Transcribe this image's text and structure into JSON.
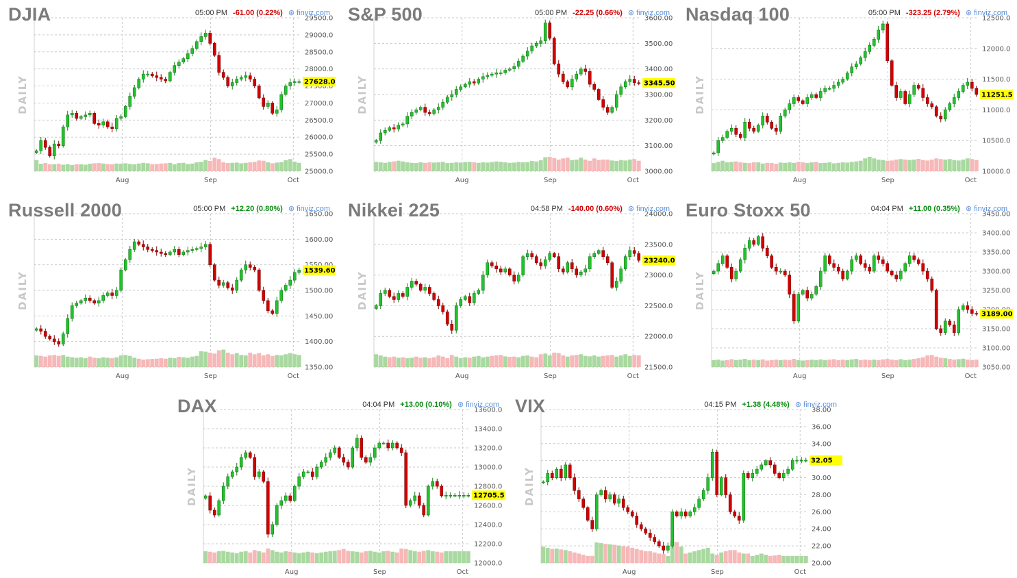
{
  "brand": "finviz.com",
  "colors": {
    "up": "#22c22e",
    "down": "#d20000",
    "up_vol": "#a9d9a0",
    "down_vol": "#f6b8b8",
    "grid": "#c9c9c9",
    "last": "#ffff00"
  },
  "chart_data": [
    {
      "type": "candlestick",
      "title": "DJIA",
      "time": "05:00 PM",
      "change": "-61.00 (0.22%)",
      "direction": "down",
      "side_label": "DAILY",
      "x_ticks": [
        "Aug",
        "Sep",
        "Oct"
      ],
      "y_ticks": [
        "29500.0",
        "29000.0",
        "28500.0",
        "28000.0",
        "27500.0",
        "27000.0",
        "26500.0",
        "26000.0",
        "25500.0",
        "25000.0"
      ],
      "ylim": [
        25000,
        29500
      ],
      "last_label": "27628.0",
      "last": 27628,
      "close": [
        25600,
        25900,
        25700,
        25450,
        25800,
        25750,
        26300,
        26650,
        26700,
        26550,
        26600,
        26650,
        26700,
        26400,
        26350,
        26450,
        26300,
        26250,
        26550,
        26600,
        26900,
        27200,
        27450,
        27700,
        27850,
        27850,
        27800,
        27750,
        27700,
        27650,
        27900,
        28100,
        28200,
        28300,
        28450,
        28600,
        28800,
        28950,
        29050,
        28750,
        28400,
        27900,
        27750,
        27500,
        27600,
        27700,
        27750,
        27800,
        27700,
        27500,
        27150,
        26900,
        27000,
        26700,
        26800,
        27250,
        27500,
        27600,
        27628,
        27628
      ],
      "volume_up": [
        0.48,
        0.32,
        0.35,
        0.3,
        0.3,
        0.32,
        0.28,
        0.3,
        0.27,
        0.3,
        0.3,
        0.28,
        0.32,
        0.34,
        0.35,
        0.33,
        0.31,
        0.3,
        0.33,
        0.32,
        0.34,
        0.31,
        0.3,
        0.33,
        0.36,
        0.34,
        0.3,
        0.31,
        0.33,
        0.34,
        0.36,
        0.3,
        0.35,
        0.36,
        0.31,
        0.33,
        0.38,
        0.4,
        0.48,
        0.44,
        0.58,
        0.52,
        0.38,
        0.35,
        0.36,
        0.37,
        0.34,
        0.36,
        0.38,
        0.4,
        0.46,
        0.45,
        0.38,
        0.34,
        0.37,
        0.39,
        0.47,
        0.52,
        0.41,
        0.36
      ]
    },
    {
      "type": "candlestick",
      "title": "S&P 500",
      "time": "05:00 PM",
      "change": "-22.25 (0.66%)",
      "direction": "down",
      "side_label": "DAILY",
      "x_ticks": [
        "Aug",
        "Sep",
        "Oct"
      ],
      "y_ticks": [
        "3600.00",
        "3500.00",
        "3400.00",
        "3300.00",
        "3200.00",
        "3100.00",
        "3000.00"
      ],
      "ylim": [
        3000,
        3600
      ],
      "last_label": "3345.50",
      "last": 3345.5,
      "close": [
        3120,
        3150,
        3160,
        3170,
        3165,
        3180,
        3185,
        3215,
        3230,
        3240,
        3250,
        3230,
        3225,
        3240,
        3250,
        3270,
        3290,
        3300,
        3320,
        3330,
        3340,
        3350,
        3345,
        3360,
        3370,
        3375,
        3380,
        3385,
        3385,
        3395,
        3400,
        3410,
        3430,
        3450,
        3470,
        3490,
        3500,
        3510,
        3580,
        3520,
        3420,
        3380,
        3350,
        3330,
        3360,
        3380,
        3400,
        3390,
        3340,
        3320,
        3280,
        3250,
        3230,
        3250,
        3300,
        3330,
        3350,
        3360,
        3346,
        3345
      ],
      "volume_up": [
        0.4,
        0.38,
        0.36,
        0.4,
        0.42,
        0.45,
        0.42,
        0.38,
        0.36,
        0.35,
        0.38,
        0.36,
        0.38,
        0.37,
        0.38,
        0.4,
        0.35,
        0.36,
        0.38,
        0.37,
        0.39,
        0.4,
        0.38,
        0.36,
        0.38,
        0.37,
        0.39,
        0.42,
        0.4,
        0.38,
        0.36,
        0.37,
        0.4,
        0.38,
        0.39,
        0.44,
        0.42,
        0.47,
        0.6,
        0.62,
        0.56,
        0.5,
        0.55,
        0.58,
        0.48,
        0.5,
        0.58,
        0.5,
        0.45,
        0.55,
        0.48,
        0.5,
        0.5,
        0.46,
        0.44,
        0.48,
        0.46,
        0.5,
        0.52,
        0.45
      ]
    },
    {
      "type": "candlestick",
      "title": "Nasdaq 100",
      "time": "05:00 PM",
      "change": "-323.25 (2.79%)",
      "direction": "down",
      "side_label": "DAILY",
      "x_ticks": [
        "Aug",
        "Sep",
        "Oct"
      ],
      "y_ticks": [
        "12500.0",
        "12000.0",
        "11500.0",
        "11000.0",
        "10500.0",
        "10000.0"
      ],
      "ylim": [
        10000,
        12500
      ],
      "last_label": "11251.5",
      "last": 11251.5,
      "close": [
        10300,
        10500,
        10550,
        10650,
        10700,
        10600,
        10550,
        10800,
        10700,
        10650,
        10750,
        10900,
        10800,
        10700,
        10650,
        10900,
        11000,
        11100,
        11200,
        11150,
        11100,
        11200,
        11250,
        11200,
        11300,
        11350,
        11350,
        11400,
        11450,
        11500,
        11600,
        11700,
        11750,
        11850,
        11950,
        12050,
        12150,
        12300,
        12400,
        11800,
        11400,
        11200,
        11300,
        11100,
        11250,
        11400,
        11350,
        11200,
        11100,
        11050,
        10900,
        10850,
        11000,
        11100,
        11200,
        11300,
        11400,
        11450,
        11350,
        11251
      ],
      "volume_up": [
        0.35,
        0.4,
        0.45,
        0.38,
        0.4,
        0.42,
        0.38,
        0.36,
        0.35,
        0.38,
        0.38,
        0.33,
        0.36,
        0.35,
        0.32,
        0.37,
        0.36,
        0.38,
        0.36,
        0.4,
        0.38,
        0.35,
        0.38,
        0.4,
        0.35,
        0.36,
        0.38,
        0.34,
        0.36,
        0.38,
        0.37,
        0.4,
        0.42,
        0.45,
        0.55,
        0.62,
        0.55,
        0.5,
        0.48,
        0.45,
        0.46,
        0.5,
        0.52,
        0.5,
        0.48,
        0.5,
        0.53,
        0.48,
        0.46,
        0.5,
        0.55,
        0.52,
        0.5,
        0.52,
        0.48,
        0.46,
        0.5,
        0.55,
        0.52,
        0.48
      ]
    },
    {
      "type": "candlestick",
      "title": "Russell 2000",
      "time": "05:00 PM",
      "change": "+12.20 (0.80%)",
      "direction": "up",
      "side_label": "DAILY",
      "x_ticks": [
        "Aug",
        "Sep",
        "Oct"
      ],
      "y_ticks": [
        "1650.00",
        "1600.00",
        "1550.00",
        "1500.00",
        "1450.00",
        "1400.00",
        "1350.00"
      ],
      "ylim": [
        1350,
        1650
      ],
      "last_label": "1539.60",
      "last": 1539.6,
      "close": [
        1425,
        1420,
        1410,
        1405,
        1400,
        1395,
        1415,
        1445,
        1470,
        1475,
        1480,
        1485,
        1480,
        1475,
        1480,
        1490,
        1495,
        1490,
        1500,
        1540,
        1560,
        1580,
        1595,
        1590,
        1585,
        1580,
        1578,
        1575,
        1572,
        1570,
        1575,
        1580,
        1570,
        1575,
        1578,
        1580,
        1582,
        1585,
        1590,
        1550,
        1520,
        1510,
        1515,
        1505,
        1500,
        1520,
        1540,
        1550,
        1545,
        1540,
        1500,
        1480,
        1460,
        1455,
        1480,
        1500,
        1510,
        1520,
        1535,
        1539.6
      ],
      "volume_up": [
        0.5,
        0.48,
        0.45,
        0.5,
        0.52,
        0.48,
        0.52,
        0.45,
        0.42,
        0.4,
        0.42,
        0.38,
        0.45,
        0.4,
        0.38,
        0.42,
        0.4,
        0.38,
        0.42,
        0.5,
        0.52,
        0.48,
        0.4,
        0.36,
        0.32,
        0.34,
        0.35,
        0.36,
        0.38,
        0.36,
        0.4,
        0.38,
        0.44,
        0.42,
        0.4,
        0.45,
        0.48,
        0.68,
        0.66,
        0.62,
        0.58,
        0.72,
        0.75,
        0.62,
        0.55,
        0.6,
        0.52,
        0.5,
        0.62,
        0.55,
        0.6,
        0.5,
        0.55,
        0.48,
        0.52,
        0.5,
        0.55,
        0.6,
        0.55,
        0.52
      ]
    },
    {
      "type": "candlestick",
      "title": "Nikkei 225",
      "time": "04:58 PM",
      "change": "-140.00 (0.60%)",
      "direction": "down",
      "side_label": "DAILY",
      "x_ticks": [
        "Aug",
        "Sep",
        "Oct"
      ],
      "y_ticks": [
        "24000.0",
        "23500.0",
        "23000.0",
        "22500.0",
        "22000.0",
        "21500.0"
      ],
      "ylim": [
        21500,
        24000
      ],
      "last_label": "23240.0",
      "last": 23240,
      "close": [
        22500,
        22700,
        22750,
        22650,
        22600,
        22700,
        22650,
        22800,
        22900,
        22850,
        22750,
        22800,
        22700,
        22600,
        22500,
        22400,
        22200,
        22100,
        22500,
        22600,
        22650,
        22550,
        22700,
        22750,
        23000,
        23200,
        23150,
        23100,
        23050,
        23100,
        23000,
        22900,
        23000,
        23300,
        23350,
        23300,
        23200,
        23150,
        23250,
        23350,
        23300,
        23100,
        23050,
        23200,
        23100,
        23000,
        23050,
        23100,
        23300,
        23350,
        23400,
        23300,
        23200,
        22800,
        22900,
        23100,
        23300,
        23400,
        23350,
        23240
      ],
      "volume_up": [
        0.55,
        0.5,
        0.45,
        0.42,
        0.45,
        0.4,
        0.42,
        0.38,
        0.4,
        0.45,
        0.4,
        0.42,
        0.38,
        0.42,
        0.5,
        0.45,
        0.38,
        0.52,
        0.45,
        0.38,
        0.42,
        0.4,
        0.45,
        0.48,
        0.42,
        0.45,
        0.48,
        0.5,
        0.52,
        0.46,
        0.44,
        0.45,
        0.42,
        0.48,
        0.5,
        0.45,
        0.42,
        0.55,
        0.58,
        0.5,
        0.62,
        0.6,
        0.5,
        0.45,
        0.5,
        0.52,
        0.55,
        0.48,
        0.46,
        0.5,
        0.45,
        0.48,
        0.5,
        0.52,
        0.45,
        0.5,
        0.55,
        0.48,
        0.52,
        0.5
      ]
    },
    {
      "type": "candlestick",
      "title": "Euro Stoxx 50",
      "time": "04:04 PM",
      "change": "+11.00 (0.35%)",
      "direction": "up",
      "side_label": "DAILY",
      "x_ticks": [
        "Aug",
        "Sep",
        "Oct"
      ],
      "y_ticks": [
        "3450.00",
        "3400.00",
        "3350.00",
        "3300.00",
        "3250.00",
        "3200.00",
        "3150.00",
        "3100.00",
        "3050.00"
      ],
      "ylim": [
        3050,
        3450
      ],
      "last_label": "3189.00",
      "last": 3189,
      "close": [
        3300,
        3320,
        3340,
        3310,
        3280,
        3300,
        3330,
        3360,
        3380,
        3370,
        3390,
        3360,
        3340,
        3310,
        3300,
        3300,
        3290,
        3240,
        3170,
        3240,
        3250,
        3230,
        3240,
        3260,
        3300,
        3340,
        3320,
        3310,
        3300,
        3280,
        3300,
        3330,
        3340,
        3320,
        3310,
        3300,
        3340,
        3330,
        3320,
        3300,
        3290,
        3280,
        3300,
        3320,
        3340,
        3330,
        3320,
        3300,
        3280,
        3250,
        3150,
        3140,
        3170,
        3160,
        3140,
        3200,
        3210,
        3200,
        3190,
        3189
      ],
      "volume_up": [
        0.3,
        0.32,
        0.28,
        0.3,
        0.34,
        0.3,
        0.32,
        0.35,
        0.3,
        0.32,
        0.3,
        0.33,
        0.28,
        0.3,
        0.32,
        0.3,
        0.32,
        0.3,
        0.35,
        0.3,
        0.28,
        0.3,
        0.32,
        0.3,
        0.33,
        0.3,
        0.32,
        0.34,
        0.3,
        0.32,
        0.3,
        0.33,
        0.35,
        0.3,
        0.32,
        0.3,
        0.32,
        0.3,
        0.33,
        0.35,
        0.32,
        0.3,
        0.34,
        0.3,
        0.32,
        0.35,
        0.38,
        0.42,
        0.5,
        0.52,
        0.45,
        0.4,
        0.38,
        0.35,
        0.32,
        0.34,
        0.36,
        0.32,
        0.3,
        0.32
      ]
    },
    {
      "type": "candlestick",
      "title": "DAX",
      "time": "04:04 PM",
      "change": "+13.00 (0.10%)",
      "direction": "up",
      "side_label": "DAILY",
      "x_ticks": [
        "Aug",
        "Sep",
        "Oct"
      ],
      "y_ticks": [
        "13600.0",
        "13400.0",
        "13200.0",
        "13000.0",
        "12800.0",
        "12600.0",
        "12400.0",
        "12200.0",
        "12000.0"
      ],
      "ylim": [
        12000,
        13600
      ],
      "last_label": "12705.5",
      "last": 12705.5,
      "close": [
        12700,
        12550,
        12500,
        12650,
        12800,
        12900,
        12950,
        13000,
        13100,
        13150,
        13100,
        12900,
        12950,
        12850,
        12300,
        12400,
        12600,
        12650,
        12700,
        12650,
        12800,
        12900,
        12950,
        12950,
        12900,
        13000,
        13050,
        13100,
        13150,
        13200,
        13100,
        13050,
        13000,
        13200,
        13300,
        13100,
        13050,
        13100,
        13200,
        13250,
        13250,
        13200,
        13250,
        13200,
        13150,
        12600,
        12650,
        12700,
        12600,
        12500,
        12800,
        12850,
        12800,
        12700,
        12705,
        12705,
        12705,
        12705,
        12705,
        12705
      ],
      "volume_up": [
        0.5,
        0.48,
        0.45,
        0.5,
        0.52,
        0.48,
        0.45,
        0.42,
        0.48,
        0.5,
        0.45,
        0.55,
        0.5,
        0.45,
        0.62,
        0.55,
        0.48,
        0.45,
        0.5,
        0.48,
        0.45,
        0.42,
        0.45,
        0.48,
        0.45,
        0.42,
        0.45,
        0.48,
        0.5,
        0.52,
        0.55,
        0.6,
        0.52,
        0.5,
        0.48,
        0.45,
        0.5,
        0.52,
        0.48,
        0.45,
        0.5,
        0.52,
        0.48,
        0.45,
        0.62,
        0.6,
        0.55,
        0.5,
        0.48,
        0.52,
        0.55,
        0.5,
        0.48,
        0.45,
        0.5,
        0.5,
        0.5,
        0.5,
        0.5,
        0.5
      ]
    },
    {
      "type": "candlestick",
      "title": "VIX",
      "time": "04:15 PM",
      "change": "+1.38 (4.48%)",
      "direction": "up",
      "side_label": "DAILY",
      "x_ticks": [
        "Aug",
        "Sep",
        "Oct"
      ],
      "y_ticks": [
        "38.00",
        "36.00",
        "34.00",
        "32.00",
        "30.00",
        "28.00",
        "26.00",
        "24.00",
        "22.00",
        "20.00"
      ],
      "ylim": [
        20,
        38
      ],
      "last_label": "32.05",
      "last": 32.05,
      "close": [
        29.5,
        30.5,
        30.0,
        31.0,
        30.0,
        31.5,
        30.0,
        28.5,
        27.5,
        26.5,
        25.0,
        24.0,
        28.0,
        28.5,
        27.5,
        28.0,
        27.0,
        27.5,
        26.5,
        26.0,
        25.5,
        24.5,
        24.0,
        23.5,
        23.0,
        22.5,
        22.0,
        21.5,
        22.0,
        26.0,
        25.5,
        26.0,
        25.5,
        26.0,
        26.5,
        27.5,
        28.5,
        30.0,
        33.0,
        28.0,
        30.0,
        28.0,
        26.0,
        25.5,
        25.0,
        30.5,
        30.0,
        30.5,
        31.0,
        31.5,
        32.0,
        31.5,
        30.5,
        30.0,
        30.5,
        31.0,
        32.05,
        32.05,
        32.05,
        32.05
      ],
      "volume_up": [
        0.7,
        0.65,
        0.6,
        0.62,
        0.58,
        0.55,
        0.5,
        0.45,
        0.4,
        0.35,
        0.3,
        0.3,
        0.88,
        0.85,
        0.82,
        0.8,
        0.78,
        0.75,
        0.72,
        0.7,
        0.65,
        0.6,
        0.55,
        0.5,
        0.5,
        0.45,
        0.4,
        0.38,
        0.3,
        0.95,
        0.9,
        0.7,
        0.4,
        0.45,
        0.5,
        0.55,
        0.6,
        0.65,
        0.4,
        0.35,
        0.45,
        0.5,
        0.55,
        0.55,
        0.45,
        0.4,
        0.4,
        0.3,
        0.35,
        0.4,
        0.35,
        0.3,
        0.32,
        0.35,
        0.3,
        0.3,
        0.3,
        0.3,
        0.3,
        0.3
      ]
    }
  ]
}
